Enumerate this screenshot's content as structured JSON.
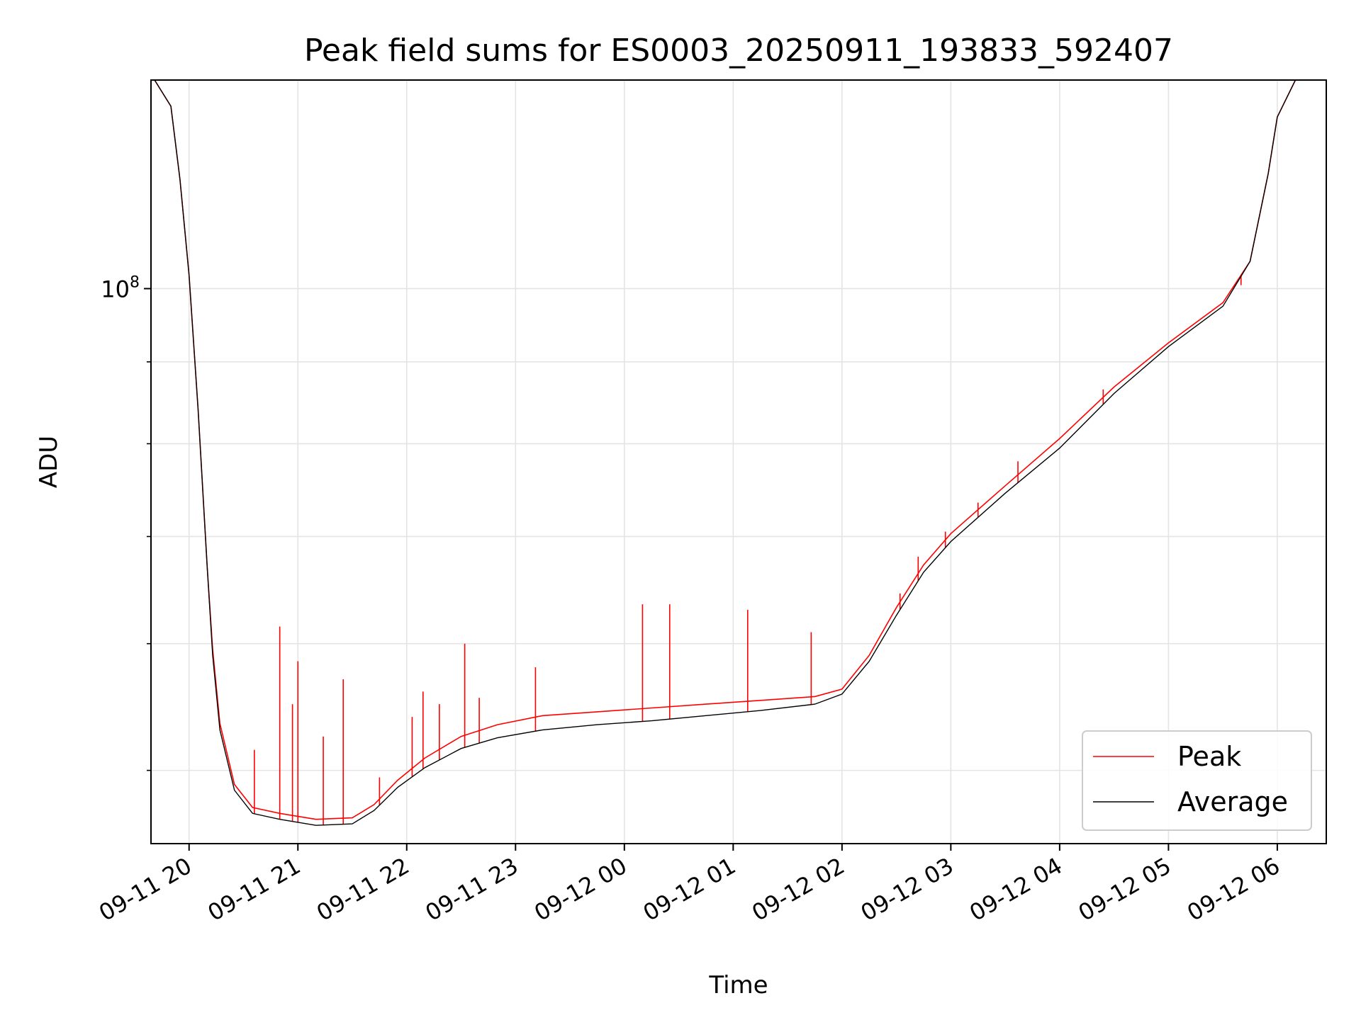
{
  "chart_data": {
    "type": "line",
    "title": "Peak field sums for ES0003_20250911_193833_592407",
    "xlabel": "Time",
    "ylabel": "ADU",
    "y_scale": "log",
    "ylim": [
      45000000,
      135000000
    ],
    "xlim": [
      "2025-09-11 19:39",
      "2025-09-12 06:27"
    ],
    "grid": true,
    "legend_position": "lower right",
    "x_tick_labels": [
      {
        "t": "2025-09-11 20:00",
        "label": "09-11 20"
      },
      {
        "t": "2025-09-11 21:00",
        "label": "09-11 21"
      },
      {
        "t": "2025-09-11 22:00",
        "label": "09-11 22"
      },
      {
        "t": "2025-09-11 23:00",
        "label": "09-11 23"
      },
      {
        "t": "2025-09-12 00:00",
        "label": "09-12 00"
      },
      {
        "t": "2025-09-12 01:00",
        "label": "09-12 01"
      },
      {
        "t": "2025-09-12 02:00",
        "label": "09-12 02"
      },
      {
        "t": "2025-09-12 03:00",
        "label": "09-12 03"
      },
      {
        "t": "2025-09-12 04:00",
        "label": "09-12 04"
      },
      {
        "t": "2025-09-12 05:00",
        "label": "09-12 05"
      },
      {
        "t": "2025-09-12 06:00",
        "label": "09-12 06"
      }
    ],
    "y_tick_labels": [
      {
        "value": 100000000,
        "base": "10",
        "exp": "8"
      }
    ],
    "series": [
      {
        "name": "Average",
        "color": "#000000",
        "points": [
          {
            "t": "2025-09-11 19:41",
            "y": 135000000
          },
          {
            "t": "2025-09-11 19:50",
            "y": 130000000
          },
          {
            "t": "2025-09-11 19:55",
            "y": 117000000
          },
          {
            "t": "2025-09-11 20:00",
            "y": 102000000
          },
          {
            "t": "2025-09-11 20:05",
            "y": 84000000
          },
          {
            "t": "2025-09-11 20:10",
            "y": 67000000
          },
          {
            "t": "2025-09-11 20:13",
            "y": 59000000
          },
          {
            "t": "2025-09-11 20:17",
            "y": 53000000
          },
          {
            "t": "2025-09-11 20:25",
            "y": 48600000
          },
          {
            "t": "2025-09-11 20:35",
            "y": 47000000
          },
          {
            "t": "2025-09-11 20:50",
            "y": 46600000
          },
          {
            "t": "2025-09-11 21:10",
            "y": 46200000
          },
          {
            "t": "2025-09-11 21:30",
            "y": 46300000
          },
          {
            "t": "2025-09-11 21:42",
            "y": 47200000
          },
          {
            "t": "2025-09-11 21:55",
            "y": 48800000
          },
          {
            "t": "2025-09-11 22:10",
            "y": 50200000
          },
          {
            "t": "2025-09-11 22:30",
            "y": 51600000
          },
          {
            "t": "2025-09-11 22:50",
            "y": 52400000
          },
          {
            "t": "2025-09-11 23:15",
            "y": 53000000
          },
          {
            "t": "2025-09-11 23:45",
            "y": 53400000
          },
          {
            "t": "2025-09-12 00:15",
            "y": 53700000
          },
          {
            "t": "2025-09-12 00:45",
            "y": 54100000
          },
          {
            "t": "2025-09-12 01:15",
            "y": 54500000
          },
          {
            "t": "2025-09-12 01:45",
            "y": 55000000
          },
          {
            "t": "2025-09-12 02:00",
            "y": 55800000
          },
          {
            "t": "2025-09-12 02:15",
            "y": 58500000
          },
          {
            "t": "2025-09-12 02:30",
            "y": 62500000
          },
          {
            "t": "2025-09-12 02:45",
            "y": 66500000
          },
          {
            "t": "2025-09-12 03:00",
            "y": 69500000
          },
          {
            "t": "2025-09-12 03:30",
            "y": 74500000
          },
          {
            "t": "2025-09-12 04:00",
            "y": 79500000
          },
          {
            "t": "2025-09-12 04:30",
            "y": 86000000
          },
          {
            "t": "2025-09-12 05:00",
            "y": 92000000
          },
          {
            "t": "2025-09-12 05:30",
            "y": 97500000
          },
          {
            "t": "2025-09-12 05:45",
            "y": 104000000
          },
          {
            "t": "2025-09-12 05:55",
            "y": 118000000
          },
          {
            "t": "2025-09-12 06:00",
            "y": 128000000
          },
          {
            "t": "2025-09-12 06:10",
            "y": 135000000
          }
        ]
      },
      {
        "name": "Peak",
        "color": "#ff0000",
        "points": [
          {
            "t": "2025-09-11 19:41",
            "y": 135000000
          },
          {
            "t": "2025-09-11 19:50",
            "y": 130000000
          },
          {
            "t": "2025-09-11 19:55",
            "y": 117000000
          },
          {
            "t": "2025-09-11 20:00",
            "y": 102000000
          },
          {
            "t": "2025-09-11 20:05",
            "y": 84000000
          },
          {
            "t": "2025-09-11 20:10",
            "y": 67000000
          },
          {
            "t": "2025-09-11 20:13",
            "y": 59500000
          },
          {
            "t": "2025-09-11 20:17",
            "y": 53500000
          },
          {
            "t": "2025-09-11 20:25",
            "y": 49000000
          },
          {
            "t": "2025-09-11 20:35",
            "y": 47400000
          },
          {
            "t": "2025-09-11 20:50",
            "y": 47000000
          },
          {
            "t": "2025-09-11 21:10",
            "y": 46600000
          },
          {
            "t": "2025-09-11 21:30",
            "y": 46700000
          },
          {
            "t": "2025-09-11 21:42",
            "y": 47600000
          },
          {
            "t": "2025-09-11 21:55",
            "y": 49300000
          },
          {
            "t": "2025-09-11 22:10",
            "y": 50900000
          },
          {
            "t": "2025-09-11 22:30",
            "y": 52500000
          },
          {
            "t": "2025-09-11 22:50",
            "y": 53400000
          },
          {
            "t": "2025-09-11 23:15",
            "y": 54100000
          },
          {
            "t": "2025-09-11 23:45",
            "y": 54400000
          },
          {
            "t": "2025-09-12 00:15",
            "y": 54700000
          },
          {
            "t": "2025-09-12 00:45",
            "y": 55000000
          },
          {
            "t": "2025-09-12 01:15",
            "y": 55300000
          },
          {
            "t": "2025-09-12 01:45",
            "y": 55600000
          },
          {
            "t": "2025-09-12 02:00",
            "y": 56200000
          },
          {
            "t": "2025-09-12 02:15",
            "y": 59000000
          },
          {
            "t": "2025-09-12 02:30",
            "y": 63200000
          },
          {
            "t": "2025-09-12 02:45",
            "y": 67200000
          },
          {
            "t": "2025-09-12 03:00",
            "y": 70300000
          },
          {
            "t": "2025-09-12 03:30",
            "y": 75300000
          },
          {
            "t": "2025-09-12 04:00",
            "y": 80600000
          },
          {
            "t": "2025-09-12 04:30",
            "y": 86800000
          },
          {
            "t": "2025-09-12 05:00",
            "y": 92500000
          },
          {
            "t": "2025-09-12 05:30",
            "y": 98000000
          },
          {
            "t": "2025-09-12 05:45",
            "y": 104000000
          },
          {
            "t": "2025-09-12 05:55",
            "y": 118000000
          },
          {
            "t": "2025-09-12 06:00",
            "y": 128000000
          },
          {
            "t": "2025-09-12 06:10",
            "y": 135000000
          }
        ],
        "spikes": [
          {
            "t": "2025-09-11 20:36",
            "y": 51500000
          },
          {
            "t": "2025-09-11 20:50",
            "y": 61500000
          },
          {
            "t": "2025-09-11 20:57",
            "y": 55000000
          },
          {
            "t": "2025-09-11 21:00",
            "y": 58500000
          },
          {
            "t": "2025-09-11 21:14",
            "y": 52500000
          },
          {
            "t": "2025-09-11 21:25",
            "y": 57000000
          },
          {
            "t": "2025-09-11 21:45",
            "y": 49500000
          },
          {
            "t": "2025-09-11 22:03",
            "y": 54000000
          },
          {
            "t": "2025-09-11 22:09",
            "y": 56000000
          },
          {
            "t": "2025-09-11 22:18",
            "y": 55000000
          },
          {
            "t": "2025-09-11 22:32",
            "y": 60000000
          },
          {
            "t": "2025-09-11 22:40",
            "y": 55500000
          },
          {
            "t": "2025-09-11 23:11",
            "y": 58000000
          },
          {
            "t": "2025-09-12 00:10",
            "y": 63500000
          },
          {
            "t": "2025-09-12 00:25",
            "y": 63500000
          },
          {
            "t": "2025-09-12 01:08",
            "y": 63000000
          },
          {
            "t": "2025-09-12 01:43",
            "y": 61000000
          },
          {
            "t": "2025-09-12 02:32",
            "y": 64500000
          },
          {
            "t": "2025-09-12 02:42",
            "y": 68000000
          },
          {
            "t": "2025-09-12 02:57",
            "y": 70500000
          },
          {
            "t": "2025-09-12 03:15",
            "y": 73500000
          },
          {
            "t": "2025-09-12 03:37",
            "y": 78000000
          },
          {
            "t": "2025-09-12 04:24",
            "y": 86500000
          },
          {
            "t": "2025-09-12 05:40",
            "y": 100500000
          }
        ]
      }
    ]
  }
}
